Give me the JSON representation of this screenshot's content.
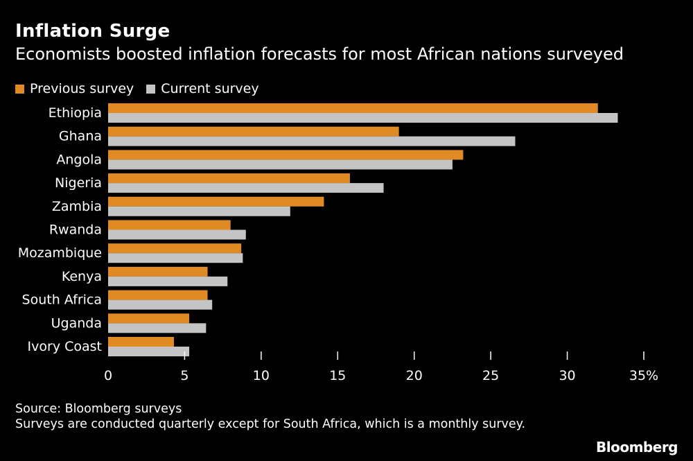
{
  "chart_data": {
    "type": "bar",
    "orientation": "horizontal",
    "title": "Inflation Surge",
    "subtitle": "Economists boosted inflation forecasts for most African nations surveyed",
    "categories": [
      "Ethiopia",
      "Ghana",
      "Angola",
      "Nigeria",
      "Zambia",
      "Rwanda",
      "Mozambique",
      "Kenya",
      "South Africa",
      "Uganda",
      "Ivory Coast"
    ],
    "series": [
      {
        "name": "Previous survey",
        "color": "#e08a24",
        "values": [
          32.0,
          19.0,
          23.2,
          15.8,
          14.1,
          8.0,
          8.7,
          6.5,
          6.5,
          5.3,
          4.3
        ]
      },
      {
        "name": "Current survey",
        "color": "#c4c4c4",
        "values": [
          33.3,
          26.6,
          22.5,
          18.0,
          11.9,
          9.0,
          8.8,
          7.8,
          6.8,
          6.4,
          5.3
        ]
      }
    ],
    "xlim": [
      0,
      35
    ],
    "xticks": [
      "0",
      "5",
      "10",
      "15",
      "20",
      "25",
      "30",
      "35%"
    ],
    "xtick_values": [
      0,
      5,
      10,
      15,
      20,
      25,
      30,
      35
    ],
    "grid": false,
    "legend_position": "top-left"
  },
  "footer": {
    "source": "Source: Bloomberg surveys",
    "note": "Surveys are conducted quarterly except for South Africa, which is a monthly survey."
  },
  "brand": "Bloomberg"
}
